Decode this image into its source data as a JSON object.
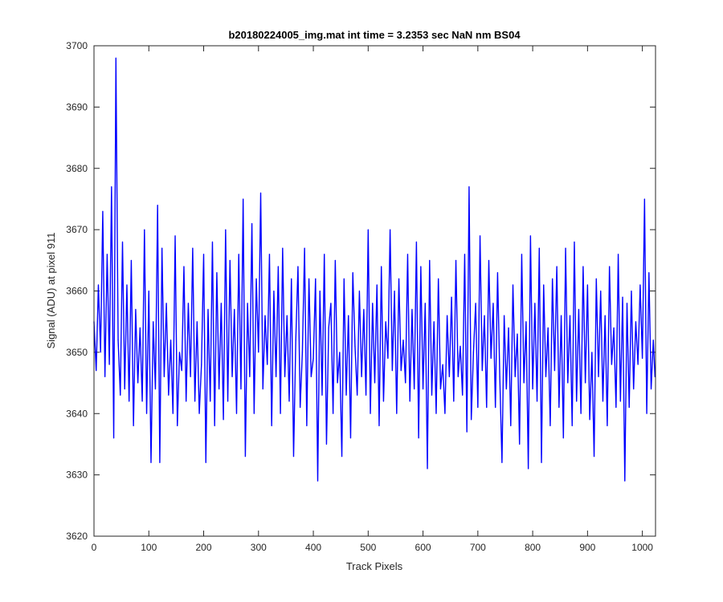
{
  "chart_data": {
    "type": "line",
    "title": "b20180224005_img.mat int time = 3.2353 sec  NaN nm BS04",
    "xlabel": "Track Pixels",
    "ylabel": "Signal (ADU) at pixel 911",
    "xlim": [
      0,
      1024
    ],
    "ylim": [
      3620,
      3700
    ],
    "x_ticks": [
      0,
      100,
      200,
      300,
      400,
      500,
      600,
      700,
      800,
      900,
      1000
    ],
    "y_ticks": [
      3620,
      3630,
      3640,
      3650,
      3660,
      3670,
      3680,
      3690,
      3700
    ],
    "x_tick_labels": [
      "0",
      "100",
      "200",
      "300",
      "400",
      "500",
      "600",
      "700",
      "800",
      "900",
      "1000"
    ],
    "y_tick_labels": [
      "3620",
      "3630",
      "3640",
      "3650",
      "3660",
      "3670",
      "3680",
      "3690",
      "3700"
    ],
    "grid": false,
    "series": [
      {
        "color": "#0000ff",
        "x": [
          0,
          4,
          8,
          12,
          16,
          20,
          24,
          28,
          32,
          36,
          40,
          44,
          48,
          52,
          56,
          60,
          64,
          68,
          72,
          76,
          80,
          84,
          88,
          92,
          96,
          100,
          104,
          108,
          112,
          116,
          120,
          124,
          128,
          132,
          136,
          140,
          144,
          148,
          152,
          156,
          160,
          164,
          168,
          172,
          176,
          180,
          184,
          188,
          192,
          196,
          200,
          204,
          208,
          212,
          216,
          220,
          224,
          228,
          232,
          236,
          240,
          244,
          248,
          252,
          256,
          260,
          264,
          268,
          272,
          276,
          280,
          284,
          288,
          292,
          296,
          300,
          304,
          308,
          312,
          316,
          320,
          324,
          328,
          332,
          336,
          340,
          344,
          348,
          352,
          356,
          360,
          364,
          368,
          372,
          376,
          380,
          384,
          388,
          392,
          396,
          400,
          404,
          408,
          412,
          416,
          420,
          424,
          428,
          432,
          436,
          440,
          444,
          448,
          452,
          456,
          460,
          464,
          468,
          472,
          476,
          480,
          484,
          488,
          492,
          496,
          500,
          504,
          508,
          512,
          516,
          520,
          524,
          528,
          532,
          536,
          540,
          544,
          548,
          552,
          556,
          560,
          564,
          568,
          572,
          576,
          580,
          584,
          588,
          592,
          596,
          600,
          604,
          608,
          612,
          616,
          620,
          624,
          628,
          632,
          636,
          640,
          644,
          648,
          652,
          656,
          660,
          664,
          668,
          672,
          676,
          680,
          684,
          688,
          692,
          696,
          700,
          704,
          708,
          712,
          716,
          720,
          724,
          728,
          732,
          736,
          740,
          744,
          748,
          752,
          756,
          760,
          764,
          768,
          772,
          776,
          780,
          784,
          788,
          792,
          796,
          800,
          804,
          808,
          812,
          816,
          820,
          824,
          828,
          832,
          836,
          840,
          844,
          848,
          852,
          856,
          860,
          864,
          868,
          872,
          876,
          880,
          884,
          888,
          892,
          896,
          900,
          904,
          908,
          912,
          916,
          920,
          924,
          928,
          932,
          936,
          940,
          944,
          948,
          952,
          956,
          960,
          964,
          968,
          972,
          976,
          980,
          984,
          988,
          992,
          996,
          1000,
          1004,
          1008,
          1012,
          1016,
          1020,
          1023
        ],
        "y": [
          3655,
          3647,
          3661,
          3650,
          3673,
          3646,
          3666,
          3648,
          3677,
          3636,
          3698,
          3652,
          3643,
          3668,
          3644,
          3661,
          3642,
          3665,
          3638,
          3657,
          3645,
          3654,
          3642,
          3670,
          3640,
          3660,
          3632,
          3655,
          3644,
          3674,
          3632,
          3667,
          3646,
          3658,
          3643,
          3652,
          3640,
          3669,
          3638,
          3650,
          3647,
          3664,
          3642,
          3658,
          3646,
          3667,
          3642,
          3655,
          3640,
          3648,
          3666,
          3632,
          3657,
          3642,
          3668,
          3638,
          3663,
          3644,
          3658,
          3639,
          3670,
          3642,
          3665,
          3646,
          3657,
          3640,
          3666,
          3644,
          3675,
          3633,
          3658,
          3646,
          3671,
          3640,
          3662,
          3650,
          3676,
          3644,
          3656,
          3648,
          3666,
          3638,
          3660,
          3646,
          3664,
          3640,
          3667,
          3646,
          3656,
          3642,
          3662,
          3633,
          3652,
          3664,
          3641,
          3650,
          3667,
          3638,
          3662,
          3646,
          3649,
          3662,
          3629,
          3660,
          3643,
          3666,
          3635,
          3654,
          3658,
          3640,
          3665,
          3645,
          3650,
          3633,
          3662,
          3643,
          3656,
          3636,
          3663,
          3651,
          3643,
          3660,
          3646,
          3657,
          3643,
          3670,
          3640,
          3658,
          3645,
          3661,
          3638,
          3664,
          3642,
          3655,
          3649,
          3670,
          3647,
          3660,
          3640,
          3662,
          3647,
          3652,
          3645,
          3666,
          3642,
          3657,
          3644,
          3668,
          3636,
          3664,
          3644,
          3658,
          3631,
          3665,
          3643,
          3655,
          3640,
          3662,
          3644,
          3648,
          3640,
          3656,
          3646,
          3659,
          3642,
          3665,
          3646,
          3651,
          3643,
          3666,
          3637,
          3677,
          3639,
          3650,
          3658,
          3641,
          3669,
          3647,
          3656,
          3641,
          3665,
          3649,
          3658,
          3641,
          3663,
          3646,
          3632,
          3656,
          3644,
          3654,
          3638,
          3661,
          3646,
          3653,
          3635,
          3666,
          3645,
          3655,
          3631,
          3669,
          3644,
          3658,
          3642,
          3667,
          3632,
          3661,
          3646,
          3654,
          3638,
          3662,
          3647,
          3664,
          3641,
          3656,
          3636,
          3667,
          3645,
          3656,
          3638,
          3668,
          3642,
          3657,
          3640,
          3664,
          3645,
          3661,
          3639,
          3650,
          3633,
          3662,
          3646,
          3660,
          3642,
          3656,
          3638,
          3664,
          3648,
          3654,
          3641,
          3666,
          3642,
          3659,
          3629,
          3658,
          3641,
          3660,
          3644,
          3655,
          3648,
          3661,
          3649,
          3675,
          3640,
          3663,
          3644,
          3652,
          3646
        ]
      }
    ]
  }
}
